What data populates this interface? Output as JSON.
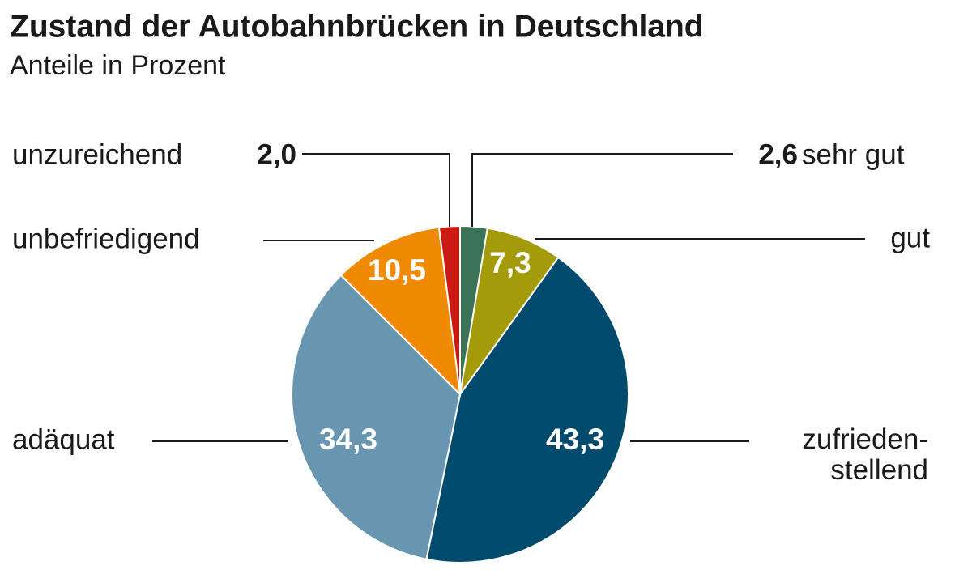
{
  "chart_data": {
    "type": "pie",
    "title": "Zustand der Autobahnbrücken in Deutschland",
    "subtitle": "Anteile in Prozent",
    "categories": [
      "sehr gut",
      "gut",
      "zufrieden-\nstellend",
      "adäquat",
      "unbefriedigend",
      "unzureichend"
    ],
    "values": [
      2.6,
      7.3,
      43.3,
      34.3,
      10.5,
      2.0
    ],
    "value_labels": [
      "2,6",
      "7,3",
      "43,3",
      "34,3",
      "10,5",
      "2,0"
    ],
    "colors": [
      "#3a7356",
      "#a39b0a",
      "#004a6e",
      "#6896b0",
      "#f08a00",
      "#cc1a14"
    ]
  }
}
